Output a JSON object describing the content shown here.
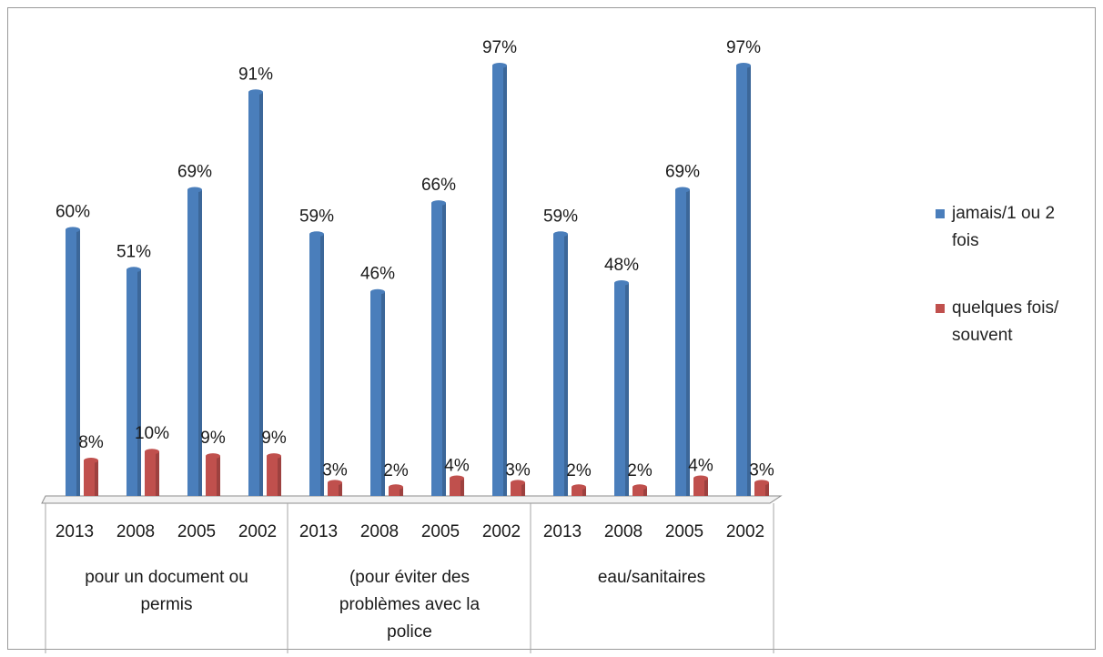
{
  "chart_data": {
    "type": "bar",
    "groups": [
      {
        "label": "pour un document ou permis",
        "categories": [
          "2013",
          "2008",
          "2005",
          "2002"
        ]
      },
      {
        "label": "(pour éviter des problèmes avec la police",
        "categories": [
          "2013",
          "2008",
          "2005",
          "2002"
        ]
      },
      {
        "label": "eau/sanitaires",
        "categories": [
          "2013",
          "2008",
          "2005",
          "2002"
        ]
      }
    ],
    "series": [
      {
        "name": "jamais/1 ou 2 fois",
        "color": "#4a7ebb",
        "values": [
          60,
          51,
          69,
          91,
          59,
          46,
          66,
          97,
          59,
          48,
          69,
          97
        ],
        "labels": [
          "60%",
          "51%",
          "69%",
          "91%",
          "59%",
          "46%",
          "66%",
          "97%",
          "59%",
          "48%",
          "69%",
          "97%"
        ]
      },
      {
        "name": "quelques fois/ souvent",
        "color": "#c0504d",
        "values": [
          8,
          10,
          9,
          9,
          3,
          2,
          4,
          3,
          2,
          2,
          4,
          3
        ],
        "labels": [
          "8%",
          "10%",
          "9%",
          "9%",
          "3%",
          "2%",
          "4%",
          "3%",
          "2%",
          "2%",
          "4%",
          "3%"
        ]
      }
    ],
    "ylim": [
      0,
      100
    ],
    "grid": false,
    "legend_position": "right"
  },
  "legend": {
    "items": [
      {
        "label_line1": "jamais/1 ou 2",
        "label_line2": "fois"
      },
      {
        "label_line1": "quelques fois/",
        "label_line2": "souvent"
      }
    ]
  }
}
